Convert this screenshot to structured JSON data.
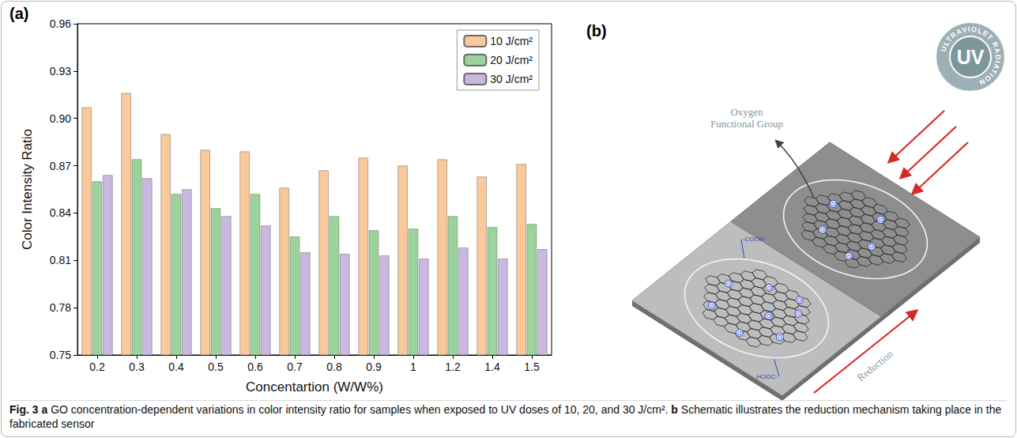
{
  "chart_data": {
    "type": "bar",
    "categories": [
      "0.2",
      "0.3",
      "0.4",
      "0.5",
      "0.6",
      "0.7",
      "0.8",
      "0.9",
      "1",
      "1.2",
      "1.4",
      "1.5"
    ],
    "series": [
      {
        "name": "10 J/cm²",
        "color": "#f9c99b",
        "values": [
          0.907,
          0.916,
          0.89,
          0.88,
          0.879,
          0.856,
          0.867,
          0.875,
          0.87,
          0.874,
          0.863,
          0.871
        ]
      },
      {
        "name": "20 J/cm²",
        "color": "#9ad49a",
        "values": [
          0.86,
          0.874,
          0.852,
          0.843,
          0.852,
          0.825,
          0.838,
          0.829,
          0.83,
          0.838,
          0.831,
          0.833
        ]
      },
      {
        "name": "30 J/cm²",
        "color": "#c9b9e0",
        "values": [
          0.864,
          0.862,
          0.855,
          0.838,
          0.832,
          0.815,
          0.814,
          0.813,
          0.811,
          0.818,
          0.811,
          0.817
        ]
      }
    ],
    "xlabel": "Concentartion (W/W%)",
    "ylabel": "Color Intensity Ratio",
    "ylim": [
      0.75,
      0.96
    ],
    "yticks": [
      0.75,
      0.78,
      0.81,
      0.84,
      0.87,
      {
        "value": 0.9,
        "label": "0.90"
      },
      0.93,
      0.96
    ],
    "grid": false,
    "legend": "upper right"
  },
  "panel_labels": [
    "(a)",
    "(b)"
  ],
  "schematic": {
    "uv_badge": {
      "label": "UV",
      "ring_text": "ULTRAVIOLET RADIATION"
    },
    "oxygen_label": "Oxygen Functional Group",
    "reduction_label": "Reduction",
    "atom_label": "O",
    "group_labels": [
      "-COOH",
      "HOOC-"
    ]
  },
  "caption": {
    "figure": "Fig. 3",
    "parts": [
      {
        "letter": "a",
        "text": "GO concentration-dependent variations in color intensity ratio for samples when exposed to UV doses of 10, 20, and 30 J/cm²."
      },
      {
        "letter": "b",
        "text": "Schematic illustrates the reduction mechanism taking place in the fabricated sensor"
      }
    ]
  }
}
